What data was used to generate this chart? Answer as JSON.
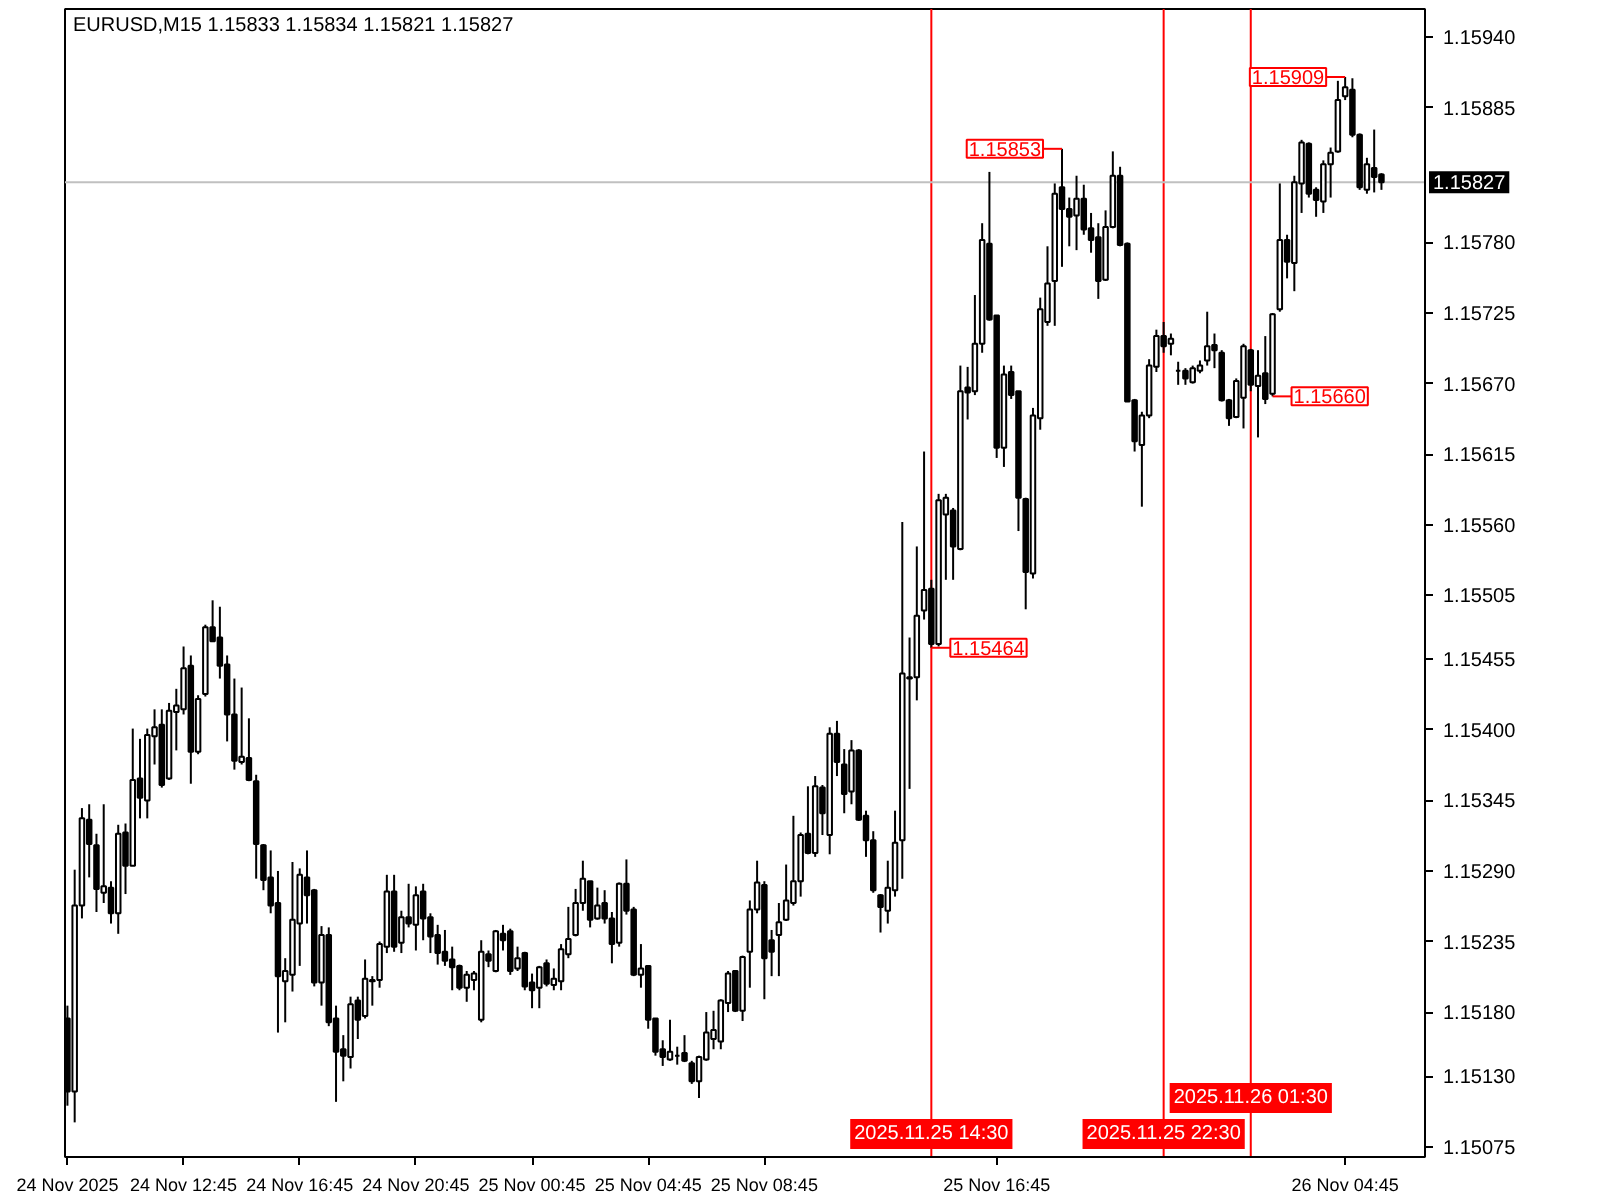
{
  "chart_data": {
    "type": "candlestick",
    "title": "EURUSD,M15 1.15833 1.15834 1.15821 1.15827",
    "color": "#000000",
    "x": [
      "2025-11-24T08:45",
      "2025-11-24T09:00",
      "2025-11-24T09:15",
      "2025-11-24T09:30",
      "2025-11-24T09:45",
      "2025-11-24T10:00",
      "2025-11-24T10:15",
      "2025-11-24T10:30",
      "2025-11-24T10:45",
      "2025-11-24T11:00",
      "2025-11-24T11:15",
      "2025-11-24T11:30",
      "2025-11-24T11:45",
      "2025-11-24T12:00",
      "2025-11-24T12:15",
      "2025-11-24T12:30",
      "2025-11-24T12:45",
      "2025-11-24T13:00",
      "2025-11-24T13:15",
      "2025-11-24T13:30",
      "2025-11-24T13:45",
      "2025-11-24T14:00",
      "2025-11-24T14:15",
      "2025-11-24T14:30",
      "2025-11-24T14:45",
      "2025-11-24T15:00",
      "2025-11-24T15:15",
      "2025-11-24T15:30",
      "2025-11-24T15:45",
      "2025-11-24T16:00",
      "2025-11-24T16:15",
      "2025-11-24T16:30",
      "2025-11-24T16:45",
      "2025-11-24T17:00",
      "2025-11-24T17:15",
      "2025-11-24T17:30",
      "2025-11-24T17:45",
      "2025-11-24T18:00",
      "2025-11-24T18:15",
      "2025-11-24T18:30",
      "2025-11-24T18:45",
      "2025-11-24T19:00",
      "2025-11-24T19:15",
      "2025-11-24T19:30",
      "2025-11-24T19:45",
      "2025-11-24T20:00",
      "2025-11-24T20:15",
      "2025-11-24T20:30",
      "2025-11-24T20:45",
      "2025-11-24T21:00",
      "2025-11-24T21:15",
      "2025-11-24T21:30",
      "2025-11-24T21:45",
      "2025-11-24T22:00",
      "2025-11-24T22:15",
      "2025-11-24T22:30",
      "2025-11-24T22:45",
      "2025-11-24T23:00",
      "2025-11-24T23:15",
      "2025-11-24T23:30",
      "2025-11-24T23:45",
      "2025-11-25T00:00",
      "2025-11-25T00:15",
      "2025-11-25T00:30",
      "2025-11-25T00:45",
      "2025-11-25T01:00",
      "2025-11-25T01:15",
      "2025-11-25T01:30",
      "2025-11-25T01:45",
      "2025-11-25T02:00",
      "2025-11-25T02:15",
      "2025-11-25T02:30",
      "2025-11-25T02:45",
      "2025-11-25T03:00",
      "2025-11-25T03:15",
      "2025-11-25T03:30",
      "2025-11-25T03:45",
      "2025-11-25T04:00",
      "2025-11-25T04:15",
      "2025-11-25T04:30",
      "2025-11-25T04:45",
      "2025-11-25T05:00",
      "2025-11-25T05:15",
      "2025-11-25T05:30",
      "2025-11-25T05:45",
      "2025-11-25T06:00",
      "2025-11-25T06:15",
      "2025-11-25T06:30",
      "2025-11-25T06:45",
      "2025-11-25T07:00",
      "2025-11-25T07:15",
      "2025-11-25T07:30",
      "2025-11-25T07:45",
      "2025-11-25T08:00",
      "2025-11-25T08:15",
      "2025-11-25T08:30",
      "2025-11-25T08:45",
      "2025-11-25T09:00",
      "2025-11-25T09:15",
      "2025-11-25T09:30",
      "2025-11-25T09:45",
      "2025-11-25T10:00",
      "2025-11-25T10:15",
      "2025-11-25T10:30",
      "2025-11-25T10:45",
      "2025-11-25T11:00",
      "2025-11-25T11:15",
      "2025-11-25T11:30",
      "2025-11-25T11:45",
      "2025-11-25T12:00",
      "2025-11-25T12:15",
      "2025-11-25T12:30",
      "2025-11-25T12:45",
      "2025-11-25T13:00",
      "2025-11-25T13:15",
      "2025-11-25T13:30",
      "2025-11-25T13:45",
      "2025-11-25T14:00",
      "2025-11-25T14:15",
      "2025-11-25T14:30",
      "2025-11-25T14:45",
      "2025-11-25T15:00",
      "2025-11-25T15:15",
      "2025-11-25T15:30",
      "2025-11-25T15:45",
      "2025-11-25T16:00",
      "2025-11-25T16:15",
      "2025-11-25T16:30",
      "2025-11-25T16:45",
      "2025-11-25T17:00",
      "2025-11-25T17:15",
      "2025-11-25T17:30",
      "2025-11-25T17:45",
      "2025-11-25T18:00",
      "2025-11-25T18:15",
      "2025-11-25T18:30",
      "2025-11-25T18:45",
      "2025-11-25T19:00",
      "2025-11-25T19:15",
      "2025-11-25T19:30",
      "2025-11-25T19:45",
      "2025-11-25T20:00",
      "2025-11-25T20:15",
      "2025-11-25T20:30",
      "2025-11-25T20:45",
      "2025-11-25T21:00",
      "2025-11-25T21:15",
      "2025-11-25T21:30",
      "2025-11-25T21:45",
      "2025-11-25T22:00",
      "2025-11-25T22:15",
      "2025-11-25T22:30",
      "2025-11-25T22:45",
      "2025-11-25T23:00",
      "2025-11-25T23:15",
      "2025-11-25T23:30",
      "2025-11-25T23:45",
      "2025-11-26T00:00",
      "2025-11-26T00:15",
      "2025-11-26T00:30",
      "2025-11-26T00:45",
      "2025-11-26T01:00",
      "2025-11-26T01:15",
      "2025-11-26T01:30",
      "2025-11-26T01:45",
      "2025-11-26T02:00",
      "2025-11-26T02:15",
      "2025-11-26T02:30",
      "2025-11-26T02:45",
      "2025-11-26T03:00",
      "2025-11-26T03:15",
      "2025-11-26T03:30",
      "2025-11-26T03:45",
      "2025-11-26T04:00",
      "2025-11-26T04:15",
      "2025-11-26T04:30",
      "2025-11-26T04:45",
      "2025-11-26T05:00",
      "2025-11-26T05:15",
      "2025-11-26T05:30",
      "2025-11-26T05:45",
      "2025-11-26T06:00"
    ],
    "ohlc": [
      [
        1.15175,
        1.15185,
        1.15107,
        1.15118
      ],
      [
        1.15118,
        1.15291,
        1.15094,
        1.15263
      ],
      [
        1.15263,
        1.15339,
        1.15253,
        1.15331
      ],
      [
        1.1533,
        1.15342,
        1.15285,
        1.15311
      ],
      [
        1.1531,
        1.15319,
        1.15258,
        1.15276
      ],
      [
        1.15273,
        1.15342,
        1.15265,
        1.15278
      ],
      [
        1.15277,
        1.15282,
        1.15249,
        1.15257
      ],
      [
        1.15257,
        1.15326,
        1.15241,
        1.15319
      ],
      [
        1.1532,
        1.15327,
        1.15272,
        1.15294
      ],
      [
        1.15294,
        1.15401,
        1.15294,
        1.15361
      ],
      [
        1.15362,
        1.15393,
        1.15331,
        1.15347
      ],
      [
        1.15345,
        1.15401,
        1.15331,
        1.15396
      ],
      [
        1.15395,
        1.15416,
        1.15373,
        1.15402
      ],
      [
        1.15404,
        1.15416,
        1.15355,
        1.15357
      ],
      [
        1.15362,
        1.15421,
        1.15361,
        1.15415
      ],
      [
        1.15414,
        1.15432,
        1.15384,
        1.15419
      ],
      [
        1.15416,
        1.15465,
        1.15412,
        1.15448
      ],
      [
        1.1545,
        1.15458,
        1.15358,
        1.15383
      ],
      [
        1.15383,
        1.15427,
        1.15381,
        1.15424
      ],
      [
        1.15428,
        1.15482,
        1.15426,
        1.1548
      ],
      [
        1.1548,
        1.15501,
        1.15469,
        1.15469
      ],
      [
        1.15472,
        1.15496,
        1.1544,
        1.1545
      ],
      [
        1.15451,
        1.15458,
        1.15391,
        1.15412
      ],
      [
        1.15412,
        1.1544,
        1.15369,
        1.15376
      ],
      [
        1.15375,
        1.15433,
        1.15373,
        1.15379
      ],
      [
        1.15378,
        1.15409,
        1.1536,
        1.15361
      ],
      [
        1.1536,
        1.15365,
        1.15284,
        1.15311
      ],
      [
        1.1531,
        1.15311,
        1.15275,
        1.15283
      ],
      [
        1.15285,
        1.15306,
        1.15257,
        1.15263
      ],
      [
        1.15265,
        1.1529,
        1.15164,
        1.15208
      ],
      [
        1.15204,
        1.15222,
        1.15172,
        1.15212
      ],
      [
        1.15209,
        1.15297,
        1.15196,
        1.15252
      ],
      [
        1.15249,
        1.15292,
        1.15216,
        1.15287
      ],
      [
        1.15285,
        1.15306,
        1.15249,
        1.15271
      ],
      [
        1.15275,
        1.15276,
        1.152,
        1.15203
      ],
      [
        1.15203,
        1.15247,
        1.15185,
        1.1524
      ],
      [
        1.1524,
        1.15246,
        1.15169,
        1.15172
      ],
      [
        1.15175,
        1.15185,
        1.1511,
        1.15149
      ],
      [
        1.15151,
        1.15162,
        1.15126,
        1.15146
      ],
      [
        1.15145,
        1.15192,
        1.15136,
        1.15186
      ],
      [
        1.15189,
        1.15192,
        1.15159,
        1.15174
      ],
      [
        1.15177,
        1.15221,
        1.15175,
        1.15206
      ],
      [
        1.15204,
        1.15208,
        1.15185,
        1.15205
      ],
      [
        1.15205,
        1.15235,
        1.15199,
        1.15233
      ],
      [
        1.15231,
        1.15287,
        1.15226,
        1.15274
      ],
      [
        1.15274,
        1.15287,
        1.15227,
        1.15231
      ],
      [
        1.15234,
        1.15259,
        1.15226,
        1.15254
      ],
      [
        1.15254,
        1.1528,
        1.15246,
        1.15249
      ],
      [
        1.15248,
        1.15278,
        1.15228,
        1.15271
      ],
      [
        1.15274,
        1.1528,
        1.15236,
        1.15253
      ],
      [
        1.15254,
        1.15257,
        1.15226,
        1.15239
      ],
      [
        1.1524,
        1.15248,
        1.15217,
        1.15226
      ],
      [
        1.15227,
        1.15244,
        1.15216,
        1.1522
      ],
      [
        1.15221,
        1.15231,
        1.15197,
        1.15215
      ],
      [
        1.15216,
        1.15217,
        1.15197,
        1.15199
      ],
      [
        1.15199,
        1.15212,
        1.15188,
        1.15209
      ],
      [
        1.15205,
        1.15212,
        1.15197,
        1.1521
      ],
      [
        1.15174,
        1.15236,
        1.15172,
        1.15227
      ],
      [
        1.15225,
        1.15228,
        1.15215,
        1.1522
      ],
      [
        1.15212,
        1.15244,
        1.15211,
        1.15243
      ],
      [
        1.15241,
        1.15248,
        1.15228,
        1.15236
      ],
      [
        1.15243,
        1.15245,
        1.15209,
        1.15212
      ],
      [
        1.15214,
        1.15231,
        1.15212,
        1.15222
      ],
      [
        1.15226,
        1.15227,
        1.15197,
        1.152
      ],
      [
        1.15203,
        1.1521,
        1.15183,
        1.15197
      ],
      [
        1.15199,
        1.15216,
        1.15183,
        1.15215
      ],
      [
        1.15218,
        1.15221,
        1.152,
        1.15202
      ],
      [
        1.15201,
        1.15214,
        1.15197,
        1.15206
      ],
      [
        1.15204,
        1.15233,
        1.15197,
        1.15229
      ],
      [
        1.15225,
        1.15262,
        1.15222,
        1.15237
      ],
      [
        1.1524,
        1.15276,
        1.15239,
        1.15265
      ],
      [
        1.15265,
        1.15298,
        1.15259,
        1.15284
      ],
      [
        1.15282,
        1.15282,
        1.15246,
        1.15252
      ],
      [
        1.15253,
        1.15277,
        1.15252,
        1.15263
      ],
      [
        1.15265,
        1.15275,
        1.15249,
        1.15253
      ],
      [
        1.15253,
        1.15258,
        1.15218,
        1.15233
      ],
      [
        1.15234,
        1.15281,
        1.15231,
        1.1528
      ],
      [
        1.1528,
        1.15299,
        1.15256,
        1.15259
      ],
      [
        1.1526,
        1.15262,
        1.15208,
        1.15209
      ],
      [
        1.15209,
        1.15233,
        1.15199,
        1.15214
      ],
      [
        1.15216,
        1.15216,
        1.15167,
        1.15174
      ],
      [
        1.15175,
        1.15175,
        1.15146,
        1.15149
      ],
      [
        1.15151,
        1.15158,
        1.15138,
        1.15145
      ],
      [
        1.15143,
        1.15174,
        1.15142,
        1.15149
      ],
      [
        1.15146,
        1.15153,
        1.15139,
        1.15146
      ],
      [
        1.15148,
        1.15162,
        1.15141,
        1.15142
      ],
      [
        1.1514,
        1.15142,
        1.15124,
        1.15126
      ],
      [
        1.15126,
        1.15146,
        1.15113,
        1.15145
      ],
      [
        1.15143,
        1.1518,
        1.15142,
        1.15164
      ],
      [
        1.15159,
        1.15181,
        1.15151,
        1.15166
      ],
      [
        1.15157,
        1.1519,
        1.15151,
        1.15189
      ],
      [
        1.15187,
        1.15212,
        1.1518,
        1.1521
      ],
      [
        1.15212,
        1.15212,
        1.1518,
        1.15181
      ],
      [
        1.15181,
        1.15224,
        1.15173,
        1.15223
      ],
      [
        1.15227,
        1.15267,
        1.15199,
        1.1526
      ],
      [
        1.1526,
        1.15298,
        1.15257,
        1.15281
      ],
      [
        1.15279,
        1.15282,
        1.1519,
        1.15222
      ],
      [
        1.15236,
        1.15244,
        1.15208,
        1.15227
      ],
      [
        1.1524,
        1.15265,
        1.15208,
        1.1525
      ],
      [
        1.15252,
        1.15295,
        1.15251,
        1.15267
      ],
      [
        1.15265,
        1.15333,
        1.15263,
        1.15282
      ],
      [
        1.15282,
        1.1532,
        1.1527,
        1.15318
      ],
      [
        1.15319,
        1.15356,
        1.15303,
        1.15304
      ],
      [
        1.15304,
        1.15364,
        1.15301,
        1.15356
      ],
      [
        1.15355,
        1.15357,
        1.15318,
        1.15335
      ],
      [
        1.15318,
        1.15402,
        1.15303,
        1.15397
      ],
      [
        1.15397,
        1.15407,
        1.15364,
        1.15375
      ],
      [
        1.15373,
        1.15385,
        1.15335,
        1.1535
      ],
      [
        1.15352,
        1.15392,
        1.15342,
        1.15384
      ],
      [
        1.15384,
        1.15385,
        1.15329,
        1.1533
      ],
      [
        1.15333,
        1.15337,
        1.15301,
        1.15314
      ],
      [
        1.15314,
        1.15321,
        1.15273,
        1.15275
      ],
      [
        1.15271,
        1.15272,
        1.15242,
        1.15262
      ],
      [
        1.15259,
        1.15298,
        1.15249,
        1.15277
      ],
      [
        1.15275,
        1.15337,
        1.1527,
        1.15312
      ],
      [
        1.15314,
        1.15562,
        1.15284,
        1.15444
      ],
      [
        1.1544,
        1.15472,
        1.15354,
        1.15441
      ],
      [
        1.15441,
        1.15543,
        1.15423,
        1.15489
      ],
      [
        1.15493,
        1.15617,
        1.15486,
        1.15509
      ],
      [
        1.1551,
        1.15517,
        1.15464,
        1.15467
      ],
      [
        1.15467,
        1.15584,
        1.15465,
        1.15579
      ],
      [
        1.15568,
        1.15584,
        1.15517,
        1.15581
      ],
      [
        1.15571,
        1.15573,
        1.15517,
        1.15543
      ],
      [
        1.15541,
        1.15684,
        1.1554,
        1.15664
      ],
      [
        1.15667,
        1.15683,
        1.15642,
        1.15663
      ],
      [
        1.15664,
        1.15739,
        1.15661,
        1.15701
      ],
      [
        1.15701,
        1.15795,
        1.15694,
        1.15782
      ],
      [
        1.15779,
        1.15835,
        1.15719,
        1.1572
      ],
      [
        1.15723,
        1.15723,
        1.15612,
        1.1562
      ],
      [
        1.1562,
        1.15684,
        1.15605,
        1.15677
      ],
      [
        1.15679,
        1.15684,
        1.15658,
        1.15661
      ],
      [
        1.15664,
        1.15664,
        1.15555,
        1.15581
      ],
      [
        1.1558,
        1.15581,
        1.15494,
        1.15523
      ],
      [
        1.15522,
        1.15651,
        1.15518,
        1.15645
      ],
      [
        1.15643,
        1.15737,
        1.15634,
        1.15728
      ],
      [
        1.15718,
        1.15777,
        1.15715,
        1.15748
      ],
      [
        1.1575,
        1.15826,
        1.15715,
        1.15818
      ],
      [
        1.15823,
        1.15853,
        1.15761,
        1.15806
      ],
      [
        1.15806,
        1.15815,
        1.15777,
        1.158
      ],
      [
        1.15801,
        1.15832,
        1.15774,
        1.15814
      ],
      [
        1.15814,
        1.15825,
        1.15786,
        1.1579
      ],
      [
        1.15791,
        1.15803,
        1.15772,
        1.15782
      ],
      [
        1.15784,
        1.15795,
        1.15736,
        1.1575
      ],
      [
        1.15751,
        1.15805,
        1.1575,
        1.15792
      ],
      [
        1.15792,
        1.15851,
        1.15791,
        1.15832
      ],
      [
        1.15832,
        1.15839,
        1.15777,
        1.15778
      ],
      [
        1.15779,
        1.1578,
        1.15656,
        1.15656
      ],
      [
        1.15657,
        1.15658,
        1.15617,
        1.15625
      ],
      [
        1.15622,
        1.15648,
        1.15574,
        1.15645
      ],
      [
        1.15645,
        1.15689,
        1.15643,
        1.15684
      ],
      [
        1.15683,
        1.15712,
        1.15679,
        1.15707
      ],
      [
        1.15707,
        1.15718,
        1.15694,
        1.15699
      ],
      [
        1.15701,
        1.15709,
        1.15692,
        1.15705
      ],
      [
        1.1568,
        1.15687,
        1.15669,
        1.1568
      ],
      [
        1.1568,
        1.15682,
        1.15669,
        1.15674
      ],
      [
        1.15671,
        1.15684,
        1.1567,
        1.15682
      ],
      [
        1.1568,
        1.15688,
        1.15678,
        1.15684
      ],
      [
        1.15688,
        1.15726,
        1.15684,
        1.15699
      ],
      [
        1.157,
        1.15709,
        1.15682,
        1.15696
      ],
      [
        1.15694,
        1.15696,
        1.15656,
        1.15657
      ],
      [
        1.15657,
        1.15658,
        1.15637,
        1.15643
      ],
      [
        1.15644,
        1.15674,
        1.15643,
        1.15672
      ],
      [
        1.15659,
        1.15701,
        1.15635,
        1.15699
      ],
      [
        1.15696,
        1.15697,
        1.15664,
        1.15669
      ],
      [
        1.15668,
        1.15696,
        1.15628,
        1.15676
      ],
      [
        1.15678,
        1.15707,
        1.15654,
        1.15658
      ],
      [
        1.15662,
        1.15725,
        1.1566,
        1.15724
      ],
      [
        1.15728,
        1.15826,
        1.15726,
        1.15782
      ],
      [
        1.15782,
        1.15786,
        1.15752,
        1.15765
      ],
      [
        1.15764,
        1.15832,
        1.15742,
        1.15827
      ],
      [
        1.15826,
        1.1586,
        1.15803,
        1.15858
      ],
      [
        1.15857,
        1.15858,
        1.15815,
        1.15818
      ],
      [
        1.15821,
        1.15823,
        1.158,
        1.15813
      ],
      [
        1.15812,
        1.15844,
        1.15803,
        1.15841
      ],
      [
        1.15841,
        1.15854,
        1.15815,
        1.1585
      ],
      [
        1.15851,
        1.15906,
        1.1585,
        1.15891
      ],
      [
        1.15894,
        1.15909,
        1.15891,
        1.15901
      ],
      [
        1.15899,
        1.15908,
        1.15862,
        1.15864
      ],
      [
        1.15864,
        1.15865,
        1.15821,
        1.15823
      ],
      [
        1.15821,
        1.15846,
        1.15818,
        1.15841
      ],
      [
        1.15838,
        1.15868,
        1.15819,
        1.15831
      ],
      [
        1.15833,
        1.15834,
        1.15821,
        1.15827
      ]
    ],
    "xlim": [
      "2025-11-24T08:40",
      "2025-11-26T07:30"
    ],
    "ylim": [
      1.15067,
      1.15962
    ],
    "xticks": [
      {
        "value": "2025-11-24T08:45",
        "label": "24 Nov 2025"
      },
      {
        "value": "2025-11-24T12:45",
        "label": "24 Nov 12:45"
      },
      {
        "value": "2025-11-24T16:45",
        "label": "24 Nov 16:45"
      },
      {
        "value": "2025-11-24T20:45",
        "label": "24 Nov 20:45"
      },
      {
        "value": "2025-11-25T00:45",
        "label": "25 Nov 00:45"
      },
      {
        "value": "2025-11-25T04:45",
        "label": "25 Nov 04:45"
      },
      {
        "value": "2025-11-25T08:45",
        "label": "25 Nov 08:45"
      },
      {
        "value": "2025-11-25T16:45",
        "label": "25 Nov 16:45"
      },
      {
        "value": "2025-11-26T04:45",
        "label": "26 Nov 04:45"
      }
    ],
    "yticks": [
      1.15075,
      {
        "value": 1.1513,
        "label": "1.15130"
      },
      {
        "value": 1.1518,
        "label": "1.15180"
      },
      1.15235,
      {
        "value": 1.1529,
        "label": "1.15290"
      },
      1.15345,
      {
        "value": 1.154,
        "label": "1.15400"
      },
      1.15455,
      1.15505,
      {
        "value": 1.1556,
        "label": "1.15560"
      },
      1.15615,
      {
        "value": 1.1567,
        "label": "1.15670"
      },
      1.15725,
      {
        "value": 1.1578,
        "label": "1.15780"
      },
      1.15885,
      {
        "value": 1.1594,
        "label": "1.15940"
      }
    ],
    "ref_lines": [
      {
        "axis": "x",
        "value": "2025-11-25T14:30",
        "label": "2025.11.25 14:30",
        "color": "#ff0000"
      },
      {
        "axis": "x",
        "value": "2025-11-25T22:30",
        "label": "2025.11.25 22:30",
        "color": "#ff0000"
      },
      {
        "axis": "x",
        "value": "2025-11-26T01:30",
        "label": "2025.11.26 01:30",
        "color": "#ff0000"
      },
      {
        "axis": "y",
        "value": 1.15827,
        "label": "1.15827",
        "color": "#c0c0c0"
      }
    ],
    "annotations": [
      {
        "text": "1.15853",
        "x": "2025-11-25T19:00",
        "y": 1.15853
      },
      {
        "text": "1.15909",
        "x": "2025-11-26T04:45",
        "y": 1.15909
      },
      {
        "text": "1.15464",
        "x": "2025-11-25T14:30",
        "y": 1.15464
      },
      {
        "text": "1.15660",
        "x": "2025-11-26T02:15",
        "y": 1.1566
      }
    ]
  }
}
